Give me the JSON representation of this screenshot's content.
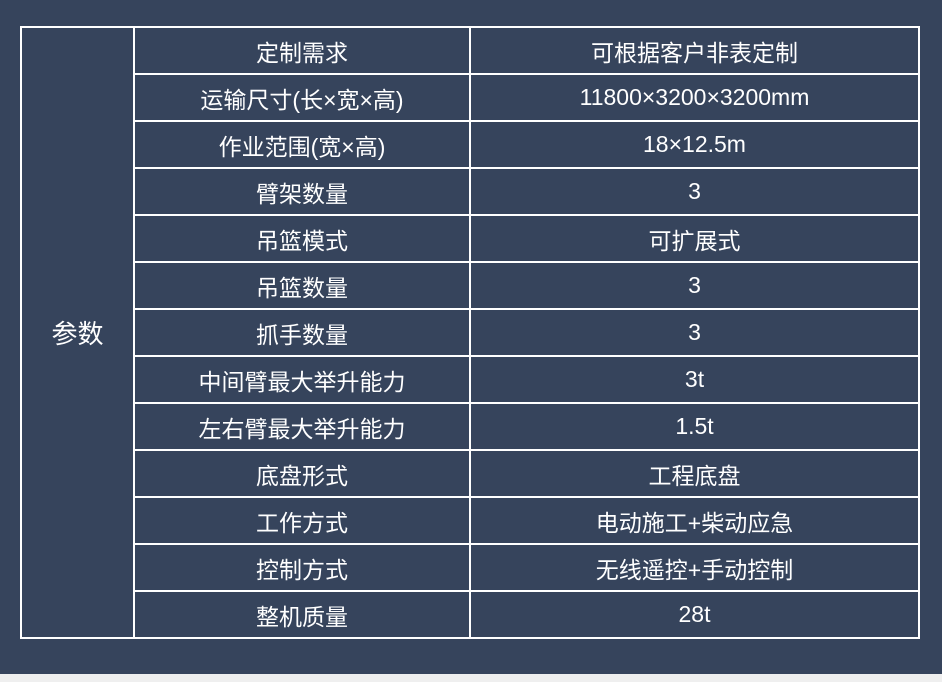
{
  "group_label": "参数",
  "rows": [
    {
      "name": "定制需求",
      "value": "可根据客户非表定制"
    },
    {
      "name": "运输尺寸(长×宽×高)",
      "value": "11800×3200×3200mm"
    },
    {
      "name": "作业范围(宽×高)",
      "value": "18×12.5m"
    },
    {
      "name": "臂架数量",
      "value": "3"
    },
    {
      "name": "吊篮模式",
      "value": "可扩展式"
    },
    {
      "name": "吊篮数量",
      "value": "3"
    },
    {
      "name": "抓手数量",
      "value": "3"
    },
    {
      "name": "中间臂最大举升能力",
      "value": "3t"
    },
    {
      "name": "左右臂最大举升能力",
      "value": "1.5t"
    },
    {
      "name": "底盘形式",
      "value": "工程底盘"
    },
    {
      "name": "工作方式",
      "value": "电动施工+柴动应急"
    },
    {
      "name": "控制方式",
      "value": "无线遥控+手动控制"
    },
    {
      "name": "整机质量",
      "value": "28t"
    }
  ],
  "colors": {
    "background": "#36445c",
    "border": "#ffffff",
    "text": "#ffffff",
    "bottom_strip": "#efefef"
  }
}
